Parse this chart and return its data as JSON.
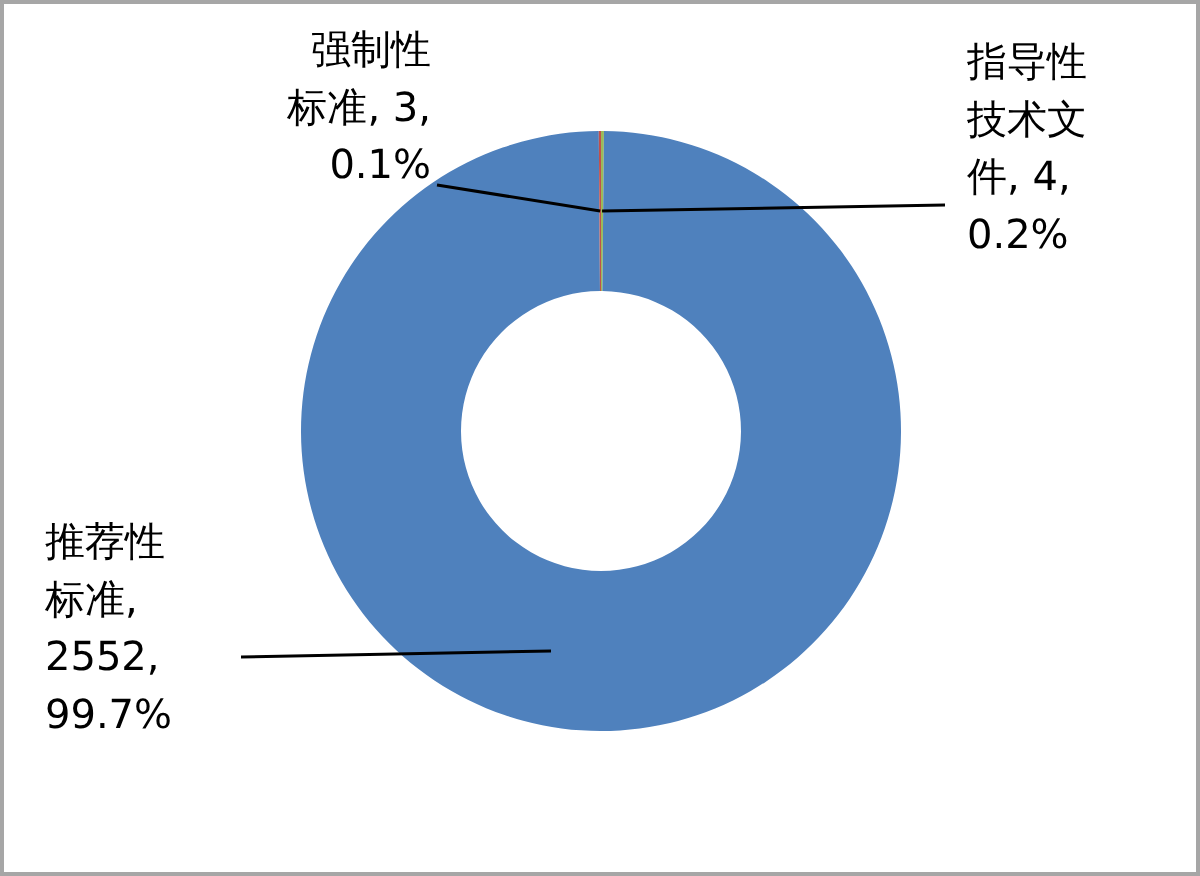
{
  "chart_data": {
    "type": "donut",
    "categories": [
      "指导性技术文件",
      "推荐性标准",
      "强制性标准"
    ],
    "values": [
      4,
      2552,
      3
    ],
    "value_labels": [
      ", 4, 0.2%",
      ", 2552, 99.7%",
      ", 3, 0.1%"
    ],
    "colors": [
      "#9bbb59",
      "#4f81bd",
      "#c0504d"
    ],
    "data_labels": true,
    "legend": false
  }
}
